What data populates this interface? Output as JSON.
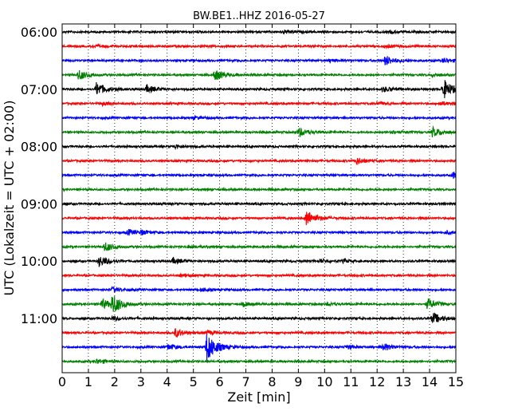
{
  "chart_data": {
    "type": "line",
    "title": "BW.BE1..HHZ 2016-05-27",
    "xlabel": "Zeit  [min]",
    "ylabel": "UTC (Lokalzeit = UTC + 02:00)",
    "xlim": [
      0,
      15
    ],
    "xticks": [
      "0",
      "1",
      "2",
      "3",
      "4",
      "5",
      "6",
      "7",
      "8",
      "9",
      "10",
      "11",
      "12",
      "13",
      "14",
      "15"
    ],
    "yticks": [
      {
        "label": "06:00",
        "row": 0
      },
      {
        "label": "07:00",
        "row": 4
      },
      {
        "label": "08:00",
        "row": 8
      },
      {
        "label": "09:00",
        "row": 12
      },
      {
        "label": "10:00",
        "row": 16
      },
      {
        "label": "11:00",
        "row": 20
      }
    ],
    "grid": "vertical-dotted",
    "row_minutes": 15,
    "start_time": "06:00",
    "colors": [
      "#000000",
      "#ff0000",
      "#0000ff",
      "#008000"
    ],
    "traces": [
      {
        "start": "06:00",
        "color": "#000000",
        "events": [
          {
            "t": 8.4,
            "a": 0.4
          },
          {
            "t": 12.5,
            "a": 0.25
          }
        ]
      },
      {
        "start": "06:15",
        "color": "#ff0000",
        "events": [
          {
            "t": 1.2,
            "a": 0.25
          },
          {
            "t": 12.3,
            "a": 0.3
          }
        ]
      },
      {
        "start": "06:30",
        "color": "#0000ff",
        "events": [
          {
            "t": 12.3,
            "a": 1.1
          },
          {
            "t": 14.5,
            "a": 0.5
          },
          {
            "t": 10.2,
            "a": 0.3
          }
        ]
      },
      {
        "start": "06:45",
        "color": "#008000",
        "events": [
          {
            "t": 0.6,
            "a": 1.1
          },
          {
            "t": 5.8,
            "a": 1.2
          },
          {
            "t": 14.1,
            "a": 0.3
          }
        ]
      },
      {
        "start": "07:00",
        "color": "#000000",
        "events": [
          {
            "t": 1.3,
            "a": 1.4
          },
          {
            "t": 3.2,
            "a": 0.8
          },
          {
            "t": 12.2,
            "a": 0.5
          },
          {
            "t": 14.5,
            "a": 2.2
          }
        ]
      },
      {
        "start": "07:15",
        "color": "#ff0000",
        "events": [
          {
            "t": 1.5,
            "a": 0.3
          },
          {
            "t": 12.0,
            "a": 0.3
          },
          {
            "t": 14.4,
            "a": 0.4
          }
        ]
      },
      {
        "start": "07:30",
        "color": "#0000ff",
        "events": [
          {
            "t": 5.0,
            "a": 0.25
          }
        ]
      },
      {
        "start": "07:45",
        "color": "#008000",
        "events": [
          {
            "t": 9.0,
            "a": 1.0
          },
          {
            "t": 14.1,
            "a": 1.0
          },
          {
            "t": 12.5,
            "a": 0.3
          }
        ]
      },
      {
        "start": "08:00",
        "color": "#000000",
        "events": [
          {
            "t": 4.3,
            "a": 0.35
          }
        ]
      },
      {
        "start": "08:15",
        "color": "#ff0000",
        "events": [
          {
            "t": 11.2,
            "a": 0.7
          }
        ]
      },
      {
        "start": "08:30",
        "color": "#0000ff",
        "events": [
          {
            "t": 14.9,
            "a": 0.8
          }
        ]
      },
      {
        "start": "08:45",
        "color": "#008000",
        "events": []
      },
      {
        "start": "09:00",
        "color": "#000000",
        "events": []
      },
      {
        "start": "09:15",
        "color": "#ff0000",
        "events": [
          {
            "t": 9.3,
            "a": 1.7
          }
        ]
      },
      {
        "start": "09:30",
        "color": "#0000ff",
        "events": [
          {
            "t": 2.5,
            "a": 0.6
          },
          {
            "t": 3.0,
            "a": 0.4
          },
          {
            "t": 14.6,
            "a": 0.3
          }
        ]
      },
      {
        "start": "09:45",
        "color": "#008000",
        "events": [
          {
            "t": 1.6,
            "a": 1.0
          },
          {
            "t": 4.8,
            "a": 0.3
          }
        ]
      },
      {
        "start": "10:00",
        "color": "#000000",
        "events": [
          {
            "t": 1.4,
            "a": 1.1
          },
          {
            "t": 4.2,
            "a": 0.6
          },
          {
            "t": 9.8,
            "a": 0.4
          },
          {
            "t": 10.7,
            "a": 0.3
          }
        ]
      },
      {
        "start": "10:15",
        "color": "#ff0000",
        "events": [
          {
            "t": 4.5,
            "a": 0.3
          }
        ]
      },
      {
        "start": "10:30",
        "color": "#0000ff",
        "events": [
          {
            "t": 1.9,
            "a": 0.5
          },
          {
            "t": 5.3,
            "a": 0.3
          }
        ]
      },
      {
        "start": "10:45",
        "color": "#008000",
        "events": [
          {
            "t": 1.9,
            "a": 2.0
          },
          {
            "t": 1.5,
            "a": 1.0
          },
          {
            "t": 13.9,
            "a": 1.1
          },
          {
            "t": 6.9,
            "a": 0.4
          },
          {
            "t": 10.1,
            "a": 0.3
          }
        ]
      },
      {
        "start": "11:00",
        "color": "#000000",
        "events": [
          {
            "t": 14.1,
            "a": 1.2
          },
          {
            "t": 1.9,
            "a": 0.4
          }
        ]
      },
      {
        "start": "11:15",
        "color": "#ff0000",
        "events": [
          {
            "t": 4.3,
            "a": 0.9
          },
          {
            "t": 5.5,
            "a": 0.4
          }
        ]
      },
      {
        "start": "11:30",
        "color": "#0000ff",
        "events": [
          {
            "t": 5.5,
            "a": 3.2
          },
          {
            "t": 4.0,
            "a": 0.6
          },
          {
            "t": 12.2,
            "a": 0.8
          },
          {
            "t": 10.8,
            "a": 0.4
          }
        ]
      },
      {
        "start": "11:45",
        "color": "#008000",
        "events": [
          {
            "t": 1.3,
            "a": 0.5
          }
        ]
      }
    ]
  }
}
